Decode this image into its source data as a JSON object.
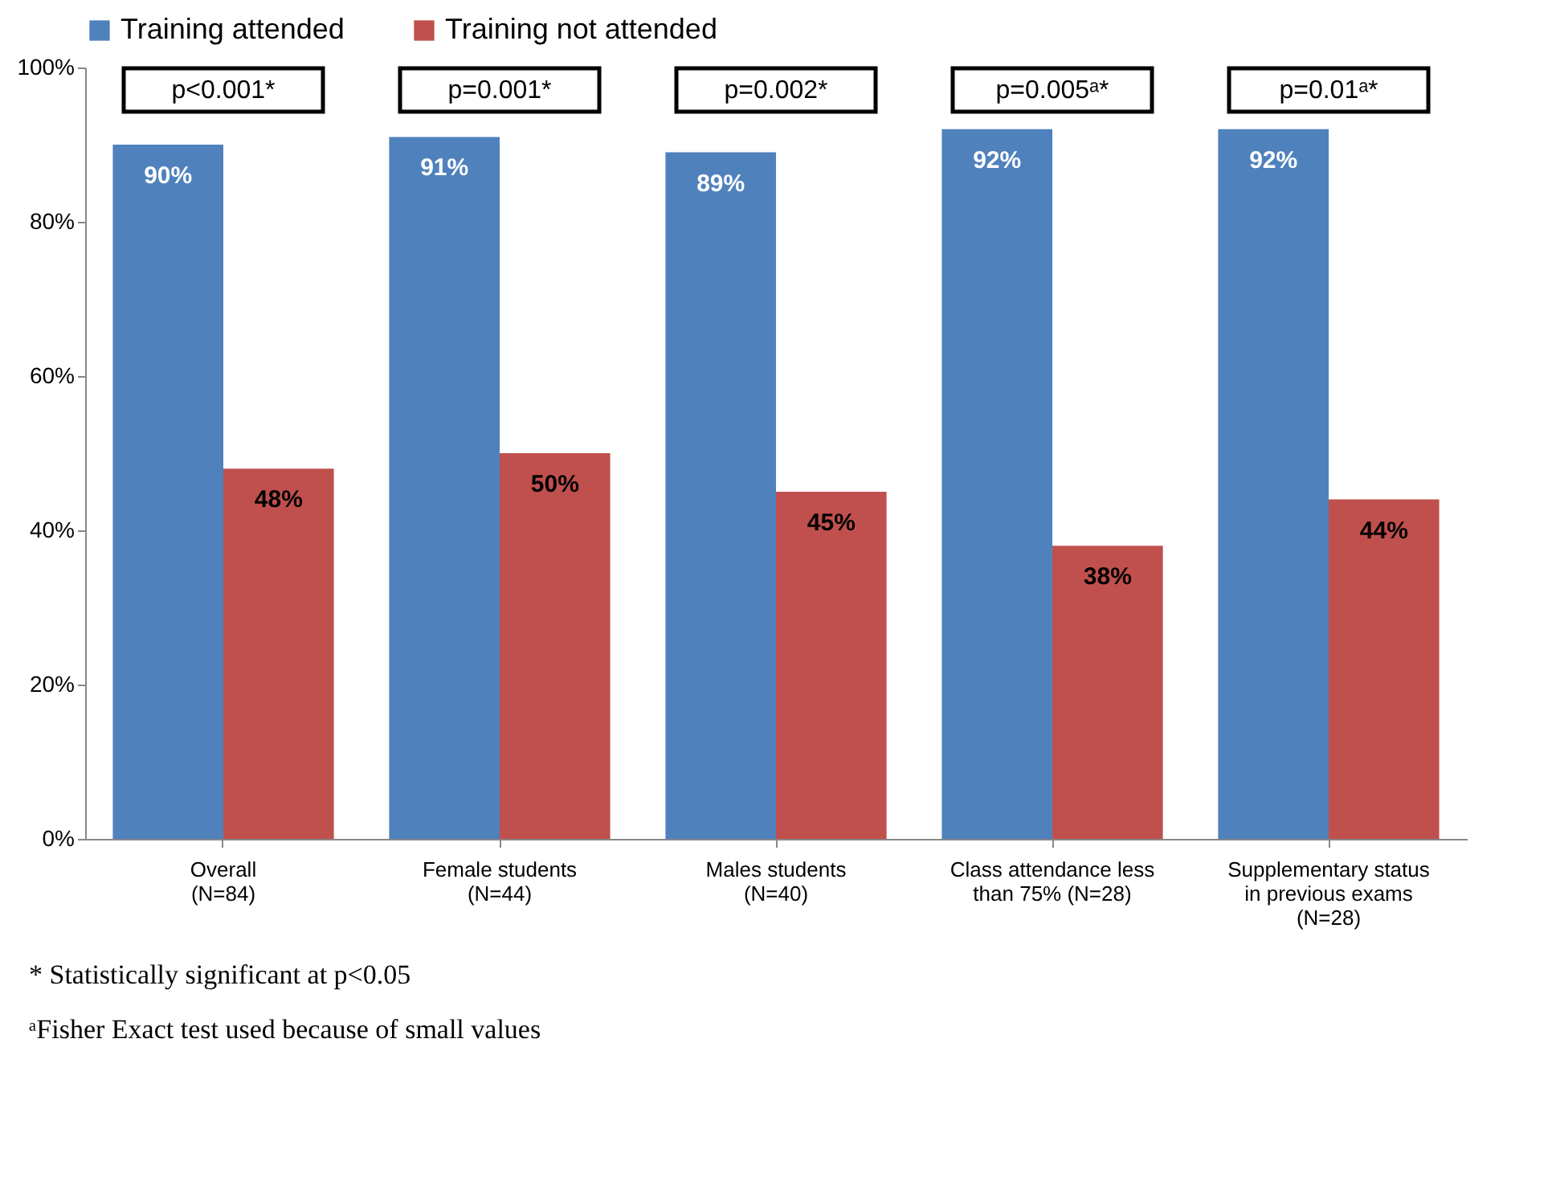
{
  "chart_data": {
    "type": "bar",
    "categories": [
      "Overall\n(N=84)",
      "Female students\n(N=44)",
      "Males students\n(N=40)",
      "Class attendance less\nthan 75% (N=28)",
      "Supplementary status\nin previous exams\n(N=28)"
    ],
    "series": [
      {
        "name": "Training attended",
        "color": "#4f81bd",
        "values": [
          90,
          91,
          89,
          92,
          92
        ],
        "value_labels": [
          "90%",
          "91%",
          "89%",
          "92%",
          "92%"
        ]
      },
      {
        "name": "Training not attended",
        "color": "#c0504d",
        "values": [
          48,
          50,
          45,
          38,
          44
        ],
        "value_labels": [
          "48%",
          "50%",
          "45%",
          "38%",
          "44%"
        ]
      }
    ],
    "ylim": [
      0,
      100
    ],
    "yticks": [
      {
        "value": 0,
        "label": "0%"
      },
      {
        "value": 20,
        "label": "20%"
      },
      {
        "value": 40,
        "label": "40%"
      },
      {
        "value": 60,
        "label": "60%"
      },
      {
        "value": 80,
        "label": "80%"
      },
      {
        "value": 100,
        "label": "100%"
      }
    ],
    "legend": "top",
    "annotations": [
      "p<0.001*",
      "p=0.001*",
      "p=0.002*",
      "p=0.005ᵃ*",
      "p=0.01ᵃ*",
      "* Statistically significant at p<0.05",
      "ᵃFisher Exact test used because of small values"
    ]
  }
}
